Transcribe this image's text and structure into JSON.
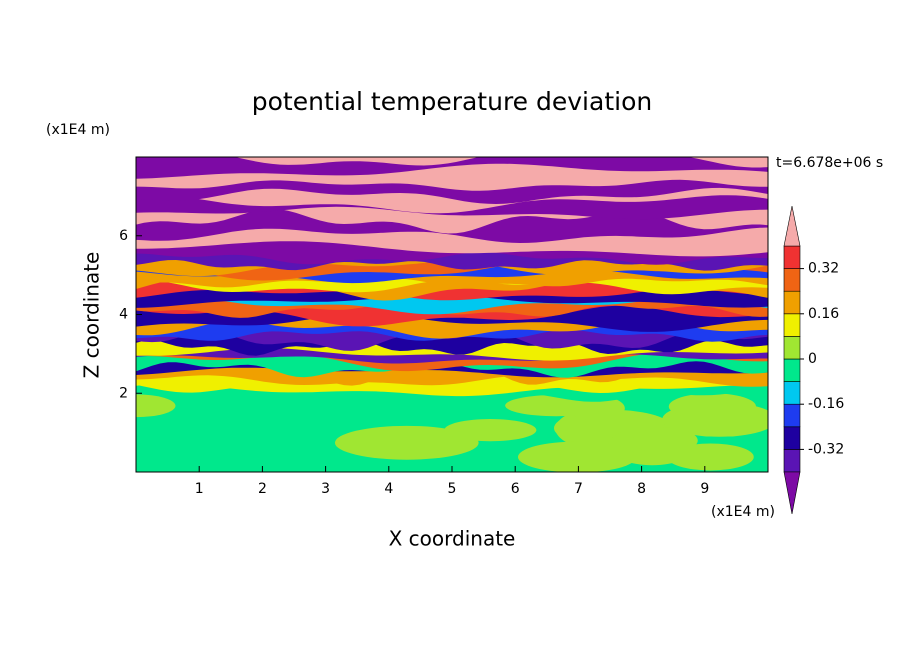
{
  "chart_data": {
    "type": "contour",
    "title": "potential temperature deviation",
    "xlabel": "X coordinate",
    "ylabel": "Z coordinate",
    "x_unit": "(x1E4 m)",
    "y_unit": "(x1E4 m)",
    "annotation": "t=6.678e+06 s",
    "xlim": [
      0,
      10
    ],
    "ylim": [
      0,
      8
    ],
    "xticks": [
      1,
      2,
      3,
      4,
      5,
      6,
      7,
      8,
      9
    ],
    "yticks": [
      2,
      4,
      6
    ],
    "clim": [
      -0.4,
      0.4
    ],
    "colorbar_ticks": [
      0.32,
      0.16,
      0,
      -0.16,
      -0.32
    ],
    "colors": [
      "#7d0aa5",
      "#5a14b4",
      "#1e00a0",
      "#1e3cf0",
      "#00c8f0",
      "#00e88c",
      "#a0e632",
      "#f0f000",
      "#f0a000",
      "#f06414",
      "#f03232",
      "#f5aaaa"
    ]
  }
}
